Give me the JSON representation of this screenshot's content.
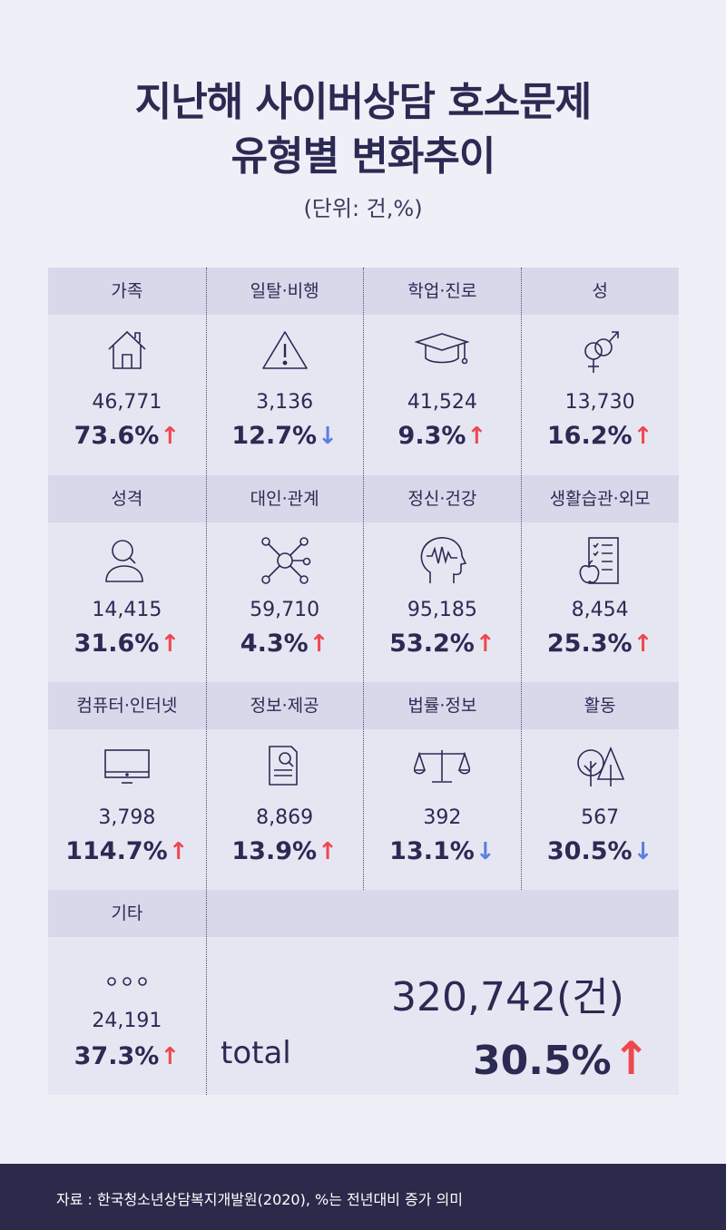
{
  "title": {
    "line1": "지난해 사이버상담 호소문제",
    "line2": "유형별 변화추이"
  },
  "unit": "(단위: 건,%)",
  "categories": [
    {
      "label": "가족",
      "icon": "house-icon",
      "count": "46,771",
      "pct": "73.6%",
      "trend": "up"
    },
    {
      "label": "일탈·비행",
      "icon": "warning-icon",
      "count": "3,136",
      "pct": "12.7%",
      "trend": "down"
    },
    {
      "label": "학업·진로",
      "icon": "graduation-cap-icon",
      "count": "41,524",
      "pct": "9.3%",
      "trend": "up"
    },
    {
      "label": "성",
      "icon": "gender-icon",
      "count": "13,730",
      "pct": "16.2%",
      "trend": "up"
    },
    {
      "label": "성격",
      "icon": "person-search-icon",
      "count": "14,415",
      "pct": "31.6%",
      "trend": "up"
    },
    {
      "label": "대인·관계",
      "icon": "network-icon",
      "count": "59,710",
      "pct": "4.3%",
      "trend": "up"
    },
    {
      "label": "정신·건강",
      "icon": "brain-head-icon",
      "count": "95,185",
      "pct": "53.2%",
      "trend": "up"
    },
    {
      "label": "생활습관·외모",
      "icon": "checklist-apple-icon",
      "count": "8,454",
      "pct": "25.3%",
      "trend": "up"
    },
    {
      "label": "컴퓨터·인터넷",
      "icon": "monitor-icon",
      "count": "3,798",
      "pct": "114.7%",
      "trend": "up"
    },
    {
      "label": "정보·제공",
      "icon": "document-search-icon",
      "count": "8,869",
      "pct": "13.9%",
      "trend": "up"
    },
    {
      "label": "법률·정보",
      "icon": "scales-icon",
      "count": "392",
      "pct": "13.1%",
      "trend": "down"
    },
    {
      "label": "활동",
      "icon": "trees-icon",
      "count": "567",
      "pct": "30.5%",
      "trend": "down"
    },
    {
      "label": "기타",
      "icon": "dots-icon",
      "count": "24,191",
      "pct": "37.3%",
      "trend": "up"
    }
  ],
  "total": {
    "label": "total",
    "count": "320,742(건)",
    "pct": "30.5%",
    "trend": "up"
  },
  "arrows": {
    "up": "↑",
    "down": "↓"
  },
  "colors": {
    "up": "#f0474e",
    "down": "#5a7fe0",
    "navy": "#2b2a53"
  },
  "footer": "자료 : 한국청소년상담복지개발원(2020), %는 전년대비 증가 의미"
}
